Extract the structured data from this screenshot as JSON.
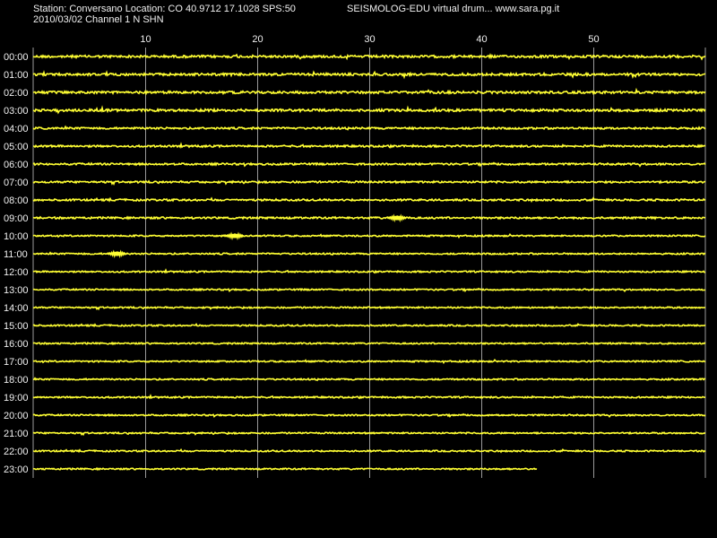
{
  "header": {
    "station_line": "Station: Conversano Location: CO 40.9712 17.1028 SPS:50",
    "app_line": "SEISMOLOG-EDU virtual drum... www.sara.pg.it",
    "date_channel_line": "2010/03/02  Channel 1 N SHN"
  },
  "colors": {
    "background": "#000000",
    "trace": "#ffff33",
    "grid": "#9a9a9a",
    "text": "#f0f0f0"
  },
  "chart_data": {
    "type": "line",
    "title": "",
    "xlabel": "",
    "ylabel": "",
    "x_range": [
      0,
      60
    ],
    "x_ticks": [
      10,
      20,
      30,
      40,
      50
    ],
    "x_tick_labels": [
      "10",
      "20",
      "30",
      "40",
      "50"
    ],
    "grid": true,
    "rows": [
      "00:00",
      "01:00",
      "02:00",
      "03:00",
      "04:00",
      "05:00",
      "06:00",
      "07:00",
      "08:00",
      "09:00",
      "10:00",
      "11:00",
      "12:00",
      "13:00",
      "14:00",
      "15:00",
      "16:00",
      "17:00",
      "18:00",
      "19:00",
      "20:00",
      "21:00",
      "22:00",
      "23:00"
    ],
    "row_end_minutes": [
      60,
      60,
      60,
      60,
      60,
      60,
      60,
      60,
      60,
      60,
      60,
      60,
      60,
      60,
      60,
      60,
      60,
      60,
      60,
      60,
      60,
      60,
      60,
      45
    ],
    "events": [
      {
        "row": "11:00",
        "minute": 7.5
      },
      {
        "row": "09:00",
        "minute": 32.5
      },
      {
        "row": "10:00",
        "minute": 18
      }
    ]
  }
}
